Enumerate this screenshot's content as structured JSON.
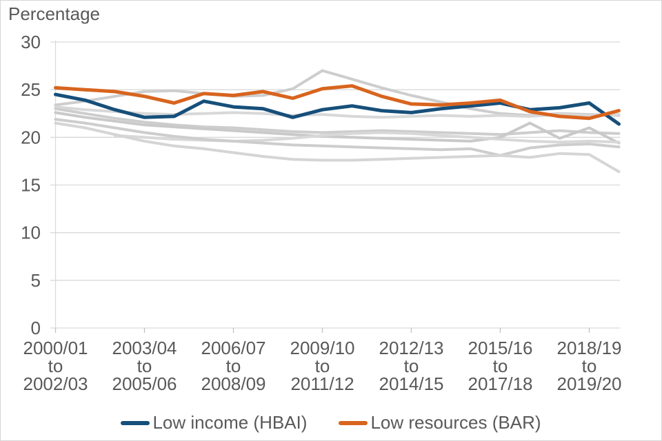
{
  "page": {
    "background": "#ffffff",
    "border_color": "#d6d6d6",
    "text_color": "#595959",
    "gridline_color": "#d9d9d9",
    "axis_color": "#c0c0c0"
  },
  "chart_data": {
    "type": "line",
    "title": "Percentage",
    "ylabel": "Percentage",
    "xlabel": "",
    "ylim": [
      0,
      30
    ],
    "yticks": [
      0,
      5,
      10,
      15,
      20,
      25,
      30
    ],
    "grid": "horizontal",
    "legend_position": "bottom-center",
    "points_per_series": 20,
    "x_tick_indices": [
      0,
      3,
      6,
      9,
      12,
      15,
      18
    ],
    "categories": [
      "2000/01 to 2002/03",
      "2003/04 to 2005/06",
      "2006/07 to 2008/09",
      "2009/10 to 2011/12",
      "2012/13 to 2014/15",
      "2015/16 to 2017/18",
      "2018/19 to 2019/20"
    ],
    "x_tick_lines": [
      [
        "2000/01",
        "to",
        "2002/03"
      ],
      [
        "2003/04",
        "to",
        "2005/06"
      ],
      [
        "2006/07",
        "to",
        "2008/09"
      ],
      [
        "2009/10",
        "to",
        "2011/12"
      ],
      [
        "2012/13",
        "to",
        "2014/15"
      ],
      [
        "2015/16",
        "to",
        "2017/18"
      ],
      [
        "2018/19",
        "to",
        "2019/20"
      ]
    ],
    "series": [
      {
        "name": "Low income (HBAI)",
        "color": "#164F7A",
        "width": 5,
        "values": [
          24.5,
          23.9,
          22.9,
          22.1,
          22.2,
          23.8,
          23.2,
          23.0,
          22.1,
          22.9,
          23.3,
          22.8,
          22.6,
          23.0,
          23.3,
          23.6,
          22.9,
          23.1,
          23.6,
          21.4
        ]
      },
      {
        "name": "Low resources (BAR)",
        "color": "#D8641E",
        "width": 5,
        "values": [
          25.2,
          25.0,
          24.8,
          24.3,
          23.6,
          24.6,
          24.4,
          24.8,
          24.1,
          25.1,
          25.4,
          24.3,
          23.5,
          23.4,
          23.6,
          23.9,
          22.7,
          22.2,
          22.0,
          22.8
        ]
      }
    ],
    "background_series": [
      {
        "name": "context-line-1",
        "color": "#CDCDCD",
        "width": 4,
        "values": [
          23.4,
          23.8,
          24.3,
          24.8,
          24.9,
          24.6,
          24.3,
          24.4,
          25.1,
          27.0,
          26.1,
          25.2,
          24.4,
          23.7,
          23.0,
          22.5,
          22.3,
          22.5,
          22.4,
          22.3
        ]
      },
      {
        "name": "context-line-2",
        "color": "#D8D8D8",
        "width": 4,
        "values": [
          23.2,
          22.9,
          22.7,
          22.5,
          22.4,
          22.5,
          22.6,
          22.5,
          22.3,
          22.4,
          22.2,
          22.1,
          22.2,
          22.3,
          22.2,
          22.3,
          22.2,
          22.4,
          22.3,
          22.4
        ]
      },
      {
        "name": "context-line-3",
        "color": "#CDCDCD",
        "width": 4,
        "values": [
          23.0,
          22.5,
          22.0,
          21.6,
          21.3,
          21.1,
          21.0,
          20.8,
          20.6,
          20.5,
          20.6,
          20.7,
          20.6,
          20.5,
          20.4,
          20.3,
          20.5,
          20.7,
          20.5,
          20.4
        ]
      },
      {
        "name": "context-line-4",
        "color": "#C9C9C9",
        "width": 4,
        "values": [
          22.6,
          22.1,
          21.7,
          21.3,
          21.1,
          20.9,
          20.7,
          20.5,
          20.3,
          20.1,
          20.0,
          19.9,
          19.8,
          19.7,
          19.6,
          20.0,
          21.5,
          19.9,
          21.0,
          19.4
        ]
      },
      {
        "name": "context-line-5",
        "color": "#D8D8D8",
        "width": 4,
        "values": [
          null,
          null,
          20.2,
          20.0,
          19.8,
          19.7,
          19.6,
          19.7,
          19.9,
          20.2,
          20.4,
          20.5,
          20.4,
          20.2,
          20.0,
          19.8,
          19.6,
          19.5,
          19.6,
          19.5
        ]
      },
      {
        "name": "context-line-6",
        "color": "#CDCDCD",
        "width": 4,
        "values": [
          21.9,
          21.5,
          21.0,
          20.5,
          20.1,
          19.8,
          19.6,
          19.4,
          19.2,
          19.1,
          19.0,
          18.9,
          18.8,
          18.7,
          18.8,
          18.1,
          18.9,
          19.2,
          19.3,
          19.0
        ]
      },
      {
        "name": "context-line-7",
        "color": "#D5D5D5",
        "width": 4,
        "values": [
          21.5,
          21.0,
          20.3,
          19.6,
          19.1,
          18.8,
          18.4,
          18.0,
          17.7,
          17.6,
          17.6,
          17.7,
          17.8,
          17.9,
          18.0,
          18.1,
          17.9,
          18.3,
          18.2,
          16.4
        ]
      }
    ],
    "legend": [
      {
        "label": "Low income (HBAI)",
        "color": "#164F7A"
      },
      {
        "label": "Low resources (BAR)",
        "color": "#D8641E"
      }
    ]
  }
}
